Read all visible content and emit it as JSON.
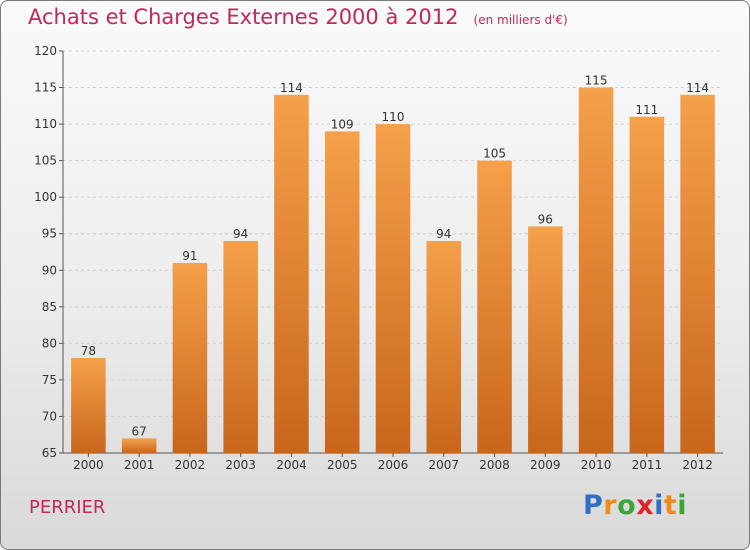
{
  "title": "Achats et Charges Externes 2000 à 2012",
  "unit_note": "(en milliers d'€)",
  "footer_label": "PERRIER",
  "brand": {
    "letters": [
      "P",
      "r",
      "o",
      "x",
      "i",
      "t",
      "i"
    ],
    "colors": [
      "#2e6fc4",
      "#f08a1c",
      "#3aa63a",
      "#e0242c",
      "#2e6fc4",
      "#f08a1c",
      "#3aa63a"
    ]
  },
  "colors": {
    "bar": "#f5a04a",
    "bar_dark": "#c8661c",
    "title": "#c0285a"
  },
  "chart_data": {
    "type": "bar",
    "title": "Achats et Charges Externes 2000 à 2012",
    "categories": [
      "2000",
      "2001",
      "2002",
      "2003",
      "2004",
      "2005",
      "2006",
      "2007",
      "2008",
      "2009",
      "2010",
      "2011",
      "2012"
    ],
    "values": [
      78,
      67,
      91,
      94,
      114,
      109,
      110,
      94,
      105,
      96,
      115,
      111,
      114
    ],
    "ylim": [
      65,
      120
    ],
    "yticks": [
      65,
      70,
      75,
      80,
      85,
      90,
      95,
      100,
      105,
      110,
      115,
      120
    ],
    "grid": true
  }
}
